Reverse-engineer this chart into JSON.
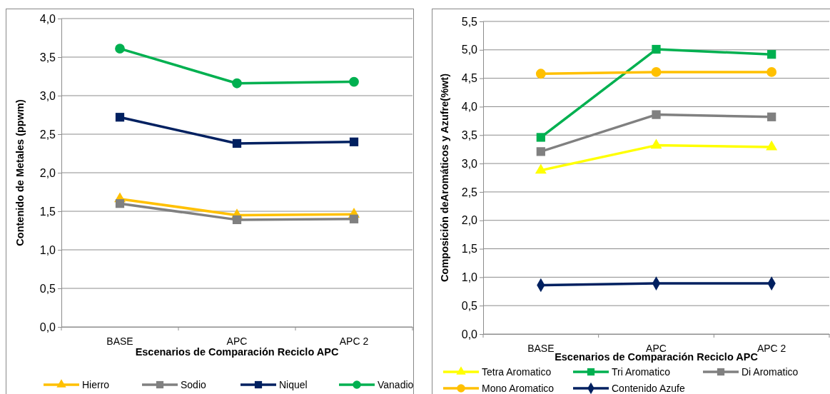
{
  "chart_data": [
    {
      "type": "line",
      "xlabel": "Escenarios de Comparación Reciclo APC",
      "ylabel": "Contenido de Metales (ppwm)",
      "categories": [
        "BASE",
        "APC",
        "APC 2"
      ],
      "ylim": [
        0,
        4
      ],
      "yticks": [
        {
          "value": 0,
          "label": "0,0"
        },
        {
          "value": 0.5,
          "label": "0,5"
        },
        {
          "value": 1,
          "label": "1,0"
        },
        {
          "value": 1.5,
          "label": "1,5"
        },
        {
          "value": 2,
          "label": "2,0"
        },
        {
          "value": 2.5,
          "label": "2,5"
        },
        {
          "value": 3,
          "label": "3,0"
        },
        {
          "value": 3.5,
          "label": "3,5"
        },
        {
          "value": 4,
          "label": "4,0"
        }
      ],
      "grid": "y",
      "legend": "bottom",
      "line_style": "solid",
      "series": [
        {
          "name": "Hierro",
          "color": "#ffc000",
          "marker": "triangle",
          "values": [
            1.66,
            1.45,
            1.46
          ]
        },
        {
          "name": "Sodio",
          "color": "#808080",
          "marker": "square",
          "values": [
            1.6,
            1.39,
            1.4
          ]
        },
        {
          "name": "Niquel",
          "color": "#002060",
          "marker": "square",
          "values": [
            2.72,
            2.38,
            2.4
          ]
        },
        {
          "name": "Vanadio",
          "color": "#00b050",
          "marker": "circle",
          "values": [
            3.61,
            3.16,
            3.18
          ]
        }
      ]
    },
    {
      "type": "line",
      "xlabel": "Escenarios de Comparación Reciclo APC",
      "ylabel": "Composición deAromáticos y Azufre(%wt)",
      "categories": [
        "BASE",
        "APC",
        "APC 2"
      ],
      "ylim": [
        0,
        5.5
      ],
      "yticks": [
        {
          "value": 0,
          "label": "0,0"
        },
        {
          "value": 0.5,
          "label": "0,5"
        },
        {
          "value": 1,
          "label": "1,0"
        },
        {
          "value": 1.5,
          "label": "1,5"
        },
        {
          "value": 2,
          "label": "2,0"
        },
        {
          "value": 2.5,
          "label": "2,5"
        },
        {
          "value": 3,
          "label": "3,0"
        },
        {
          "value": 3.5,
          "label": "3,5"
        },
        {
          "value": 4,
          "label": "4,0"
        },
        {
          "value": 4.5,
          "label": "4,5"
        },
        {
          "value": 5,
          "label": "5,0"
        },
        {
          "value": 5.5,
          "label": "5,5"
        }
      ],
      "grid": "y",
      "legend": "bottom",
      "line_style": "solid",
      "series": [
        {
          "name": "Tetra Aromatico",
          "color": "#ffff00",
          "marker": "triangle",
          "values": [
            2.88,
            3.32,
            3.29
          ]
        },
        {
          "name": "Tri Aromatico",
          "color": "#00b050",
          "marker": "square",
          "values": [
            3.46,
            5.01,
            4.92
          ]
        },
        {
          "name": "Di Aromatico",
          "color": "#808080",
          "marker": "square",
          "values": [
            3.21,
            3.86,
            3.82
          ]
        },
        {
          "name": "Mono Aromatico",
          "color": "#ffc000",
          "marker": "circle",
          "values": [
            4.58,
            4.61,
            4.61
          ]
        },
        {
          "name": "Contenido Azufe",
          "color": "#002060",
          "marker": "diamond",
          "values": [
            0.86,
            0.89,
            0.89
          ]
        }
      ]
    }
  ]
}
